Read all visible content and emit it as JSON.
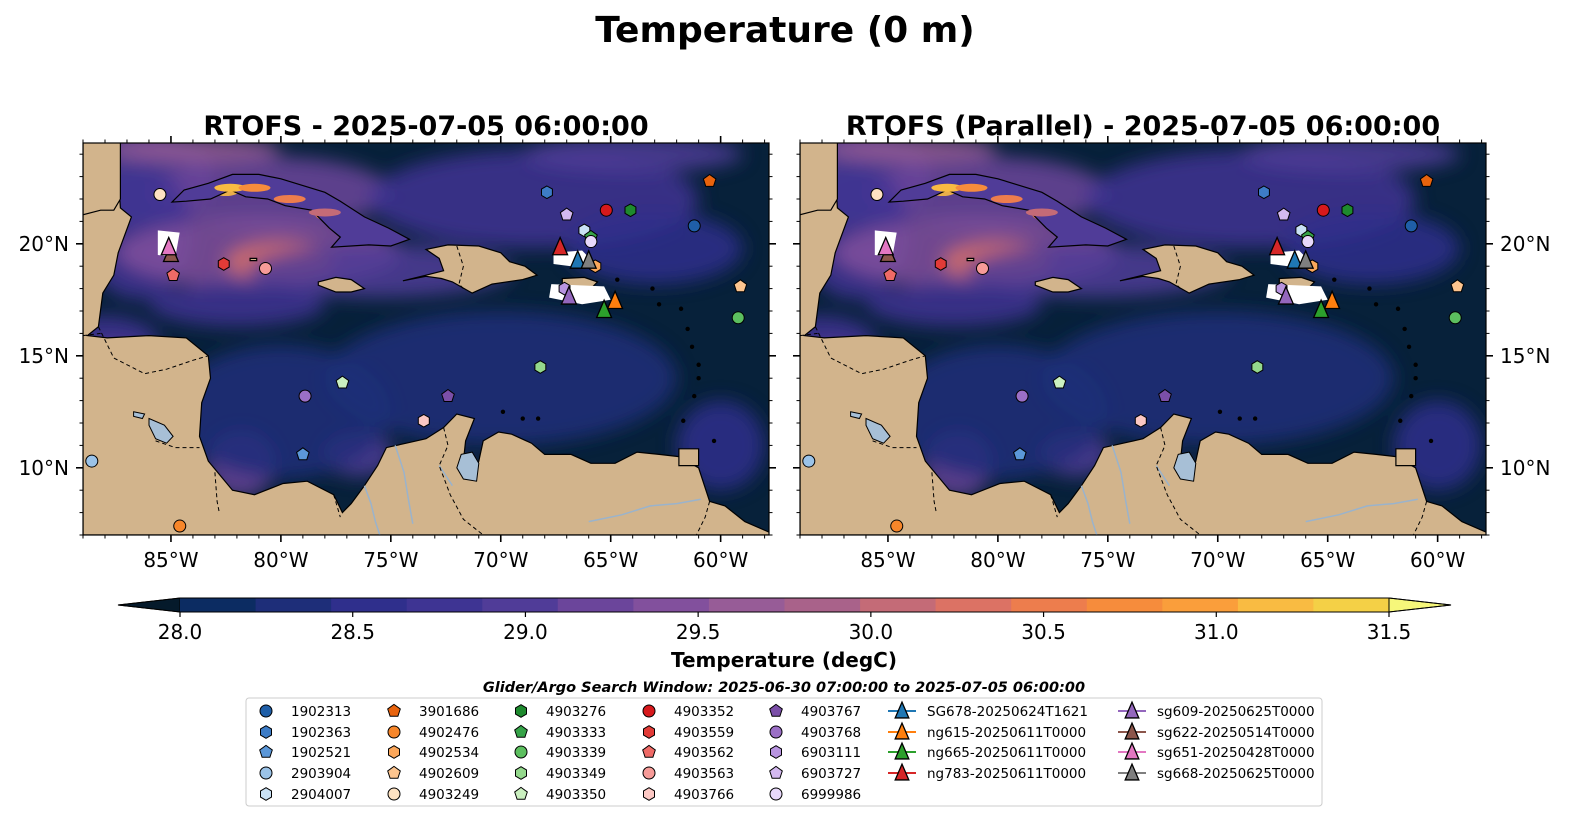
{
  "figure": {
    "suptitle": "Temperature (0 m)"
  },
  "chart_data": [
    {
      "type": "heatmap",
      "title": "RTOFS - 2025-07-05 06:00:00",
      "model": "RTOFS",
      "xlim": [
        -89.0,
        -57.8
      ],
      "ylim": [
        7.0,
        24.5
      ],
      "xticks": [
        -85,
        -80,
        -75,
        -70,
        -65,
        -60
      ],
      "yticks": [
        20,
        15,
        10
      ],
      "ytick_side": "left"
    },
    {
      "type": "heatmap",
      "title": "RTOFS (Parallel) - 2025-07-05 06:00:00",
      "model": "RTOFS (Parallel)",
      "xlim": [
        -89.0,
        -57.8
      ],
      "ylim": [
        7.0,
        24.5
      ],
      "xticks": [
        -85,
        -80,
        -75,
        -70,
        -65,
        -60
      ],
      "yticks": [
        20,
        15,
        10
      ],
      "ytick_side": "right"
    }
  ],
  "colorbar": {
    "label": "Temperature (degC)",
    "min": 28.0,
    "max": 31.5,
    "levels": 16,
    "ticks": [
      28.0,
      28.5,
      29.0,
      29.5,
      30.0,
      30.5,
      31.0,
      31.5
    ],
    "tick_labels": [
      "28.0",
      "28.5",
      "29.0",
      "29.5",
      "30.0",
      "30.5",
      "31.0",
      "31.5"
    ],
    "colors": [
      "#072137",
      "#0c2c62",
      "#1e2e79",
      "#2f2f8c",
      "#3e3493",
      "#503c98",
      "#6b459b",
      "#82509d",
      "#975c97",
      "#a9628a",
      "#c46b77",
      "#dc7264",
      "#ed7d4d",
      "#f68c3c",
      "#fa9e3b",
      "#f9bb42",
      "#f4d046",
      "#f3e65c",
      "#f5f77d"
    ],
    "under_color": "#051a2b",
    "over_color": "#f6f77a"
  },
  "map_colors": {
    "land": "#d2b48c",
    "ocean_dark": "#07213a",
    "lakes": "#a7bfd6",
    "rivers": "#9ab3cc"
  },
  "legend": {
    "title": "Glider/Argo Search Window: 2025-06-30 07:00:00 to 2025-07-05 06:00:00",
    "argo_columns": [
      [
        {
          "label": "1902313",
          "marker": "circle",
          "color": "#1f5fa8"
        },
        {
          "label": "1902363",
          "marker": "hexagon",
          "color": "#3d7cc6"
        },
        {
          "label": "1902521",
          "marker": "pentagon",
          "color": "#5b97d8"
        },
        {
          "label": "2903904",
          "marker": "circle",
          "color": "#9bc3e8"
        },
        {
          "label": "2904007",
          "marker": "hexagon",
          "color": "#c9e1f5"
        }
      ],
      [
        {
          "label": "3901686",
          "marker": "pentagon",
          "color": "#e8630d"
        },
        {
          "label": "4902476",
          "marker": "circle",
          "color": "#f7862a"
        },
        {
          "label": "4902534",
          "marker": "hexagon",
          "color": "#fba75b"
        },
        {
          "label": "4902609",
          "marker": "pentagon",
          "color": "#fdc58f"
        },
        {
          "label": "4903249",
          "marker": "circle",
          "color": "#fee2c2"
        }
      ],
      [
        {
          "label": "4903276",
          "marker": "hexagon",
          "color": "#1e8a2e"
        },
        {
          "label": "4903333",
          "marker": "pentagon",
          "color": "#36a348"
        },
        {
          "label": "4903339",
          "marker": "circle",
          "color": "#5cbf5f"
        },
        {
          "label": "4903349",
          "marker": "hexagon",
          "color": "#94d88c"
        },
        {
          "label": "4903350",
          "marker": "pentagon",
          "color": "#cbf0c0"
        }
      ],
      [
        {
          "label": "4903352",
          "marker": "circle",
          "color": "#d7191c"
        },
        {
          "label": "4903559",
          "marker": "hexagon",
          "color": "#e23b37"
        },
        {
          "label": "4903562",
          "marker": "pentagon",
          "color": "#ef6a66"
        },
        {
          "label": "4903563",
          "marker": "circle",
          "color": "#f79b98"
        },
        {
          "label": "4903766",
          "marker": "hexagon",
          "color": "#fcc8c4"
        }
      ],
      [
        {
          "label": "4903767",
          "marker": "pentagon",
          "color": "#7b4fa8"
        },
        {
          "label": "4903768",
          "marker": "circle",
          "color": "#9b6fc6"
        },
        {
          "label": "6903111",
          "marker": "hexagon",
          "color": "#b894e0"
        },
        {
          "label": "6903727",
          "marker": "pentagon",
          "color": "#d4b9f0"
        },
        {
          "label": "6999986",
          "marker": "circle",
          "color": "#e8d8fb"
        }
      ]
    ],
    "glider_columns": [
      [
        {
          "label": "SG678-20250624T1621",
          "color": "#1f77b4"
        },
        {
          "label": "ng615-20250611T0000",
          "color": "#ff7f0e"
        },
        {
          "label": "ng665-20250611T0000",
          "color": "#2ca02c"
        },
        {
          "label": "ng783-20250611T0000",
          "color": "#d62728"
        }
      ],
      [
        {
          "label": "sg609-20250625T0000",
          "color": "#9467bd"
        },
        {
          "label": "sg622-20250514T0000",
          "color": "#8c564b"
        },
        {
          "label": "sg651-20250428T0000",
          "color": "#e377c2"
        },
        {
          "label": "sg668-20250625T0000",
          "color": "#7f7f7f"
        }
      ]
    ]
  },
  "argo_positions": [
    {
      "id": "1902313",
      "lon": -61.2,
      "lat": 20.8
    },
    {
      "id": "1902363",
      "lon": -67.9,
      "lat": 22.3
    },
    {
      "id": "1902521",
      "lon": -79.0,
      "lat": 10.6
    },
    {
      "id": "2903904",
      "lon": -88.6,
      "lat": 10.3
    },
    {
      "id": "2904007",
      "lon": -66.2,
      "lat": 20.6
    },
    {
      "id": "3901686",
      "lon": -60.5,
      "lat": 22.8
    },
    {
      "id": "4902476",
      "lon": -84.6,
      "lat": 7.4
    },
    {
      "id": "4902534",
      "lon": -65.7,
      "lat": 19.0
    },
    {
      "id": "4902609",
      "lon": -59.1,
      "lat": 18.1
    },
    {
      "id": "4903249",
      "lon": -85.5,
      "lat": 22.2
    },
    {
      "id": "4903276",
      "lon": -64.1,
      "lat": 21.5
    },
    {
      "id": "4903333",
      "lon": -65.9,
      "lat": 20.3
    },
    {
      "id": "4903339",
      "lon": -59.2,
      "lat": 16.7
    },
    {
      "id": "4903349",
      "lon": -68.2,
      "lat": 14.5
    },
    {
      "id": "4903350",
      "lon": -77.2,
      "lat": 13.8
    },
    {
      "id": "4903352",
      "lon": -65.2,
      "lat": 21.5
    },
    {
      "id": "4903559",
      "lon": -82.6,
      "lat": 19.1
    },
    {
      "id": "4903562",
      "lon": -84.9,
      "lat": 18.6
    },
    {
      "id": "4903563",
      "lon": -80.7,
      "lat": 18.9
    },
    {
      "id": "4903766",
      "lon": -73.5,
      "lat": 12.1
    },
    {
      "id": "4903767",
      "lon": -72.4,
      "lat": 13.2
    },
    {
      "id": "4903768",
      "lon": -78.9,
      "lat": 13.2
    },
    {
      "id": "6903111",
      "lon": -67.1,
      "lat": 18.0
    },
    {
      "id": "6903727",
      "lon": -67.0,
      "lat": 21.3
    },
    {
      "id": "6999986",
      "lon": -65.9,
      "lat": 20.1
    }
  ],
  "glider_positions": [
    {
      "id": "SG678-20250624T1621",
      "lon": -66.5,
      "lat": 19.2
    },
    {
      "id": "ng615-20250611T0000",
      "lon": -64.8,
      "lat": 17.4
    },
    {
      "id": "ng665-20250611T0000",
      "lon": -65.3,
      "lat": 17.0
    },
    {
      "id": "ng783-20250611T0000",
      "lon": -67.3,
      "lat": 19.8
    },
    {
      "id": "sg609-20250625T0000",
      "lon": -66.9,
      "lat": 17.6
    },
    {
      "id": "sg622-20250514T0000",
      "lon": -85.0,
      "lat": 19.5
    },
    {
      "id": "sg651-20250428T0000",
      "lon": -85.1,
      "lat": 19.8
    },
    {
      "id": "sg668-20250625T0000",
      "lon": -66.0,
      "lat": 19.2
    }
  ]
}
